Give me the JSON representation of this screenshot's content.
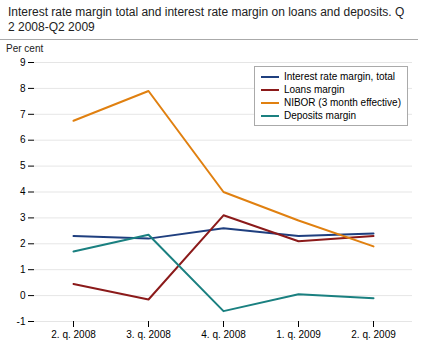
{
  "chart_data": {
    "type": "line",
    "title": "Interest rate margin total and interest rate margin on loans and deposits. Q 2 2008-Q2 2009",
    "ylabel": "Per cent",
    "categories": [
      "2. q. 2008",
      "3. q. 2008",
      "4. q. 2008",
      "1. q. 2009",
      "2. q. 2009"
    ],
    "series": [
      {
        "name": "Interest rate margin, total",
        "color": "#1f3f7f",
        "values": [
          2.3,
          2.2,
          2.6,
          2.3,
          2.4
        ]
      },
      {
        "name": "Loans margin",
        "color": "#8b1a1a",
        "values": [
          0.45,
          -0.15,
          3.1,
          2.1,
          2.3
        ]
      },
      {
        "name": "NIBOR (3 month effective)",
        "color": "#e08010",
        "values": [
          6.75,
          7.9,
          4.0,
          2.9,
          1.9
        ]
      },
      {
        "name": "Deposits margin",
        "color": "#1a8080",
        "values": [
          1.7,
          2.35,
          -0.6,
          0.05,
          -0.1
        ]
      }
    ],
    "ylim": [
      -1,
      9
    ],
    "yticks": [
      -1,
      0,
      1,
      2,
      3,
      4,
      5,
      6,
      7,
      8,
      9
    ],
    "grid": true,
    "legend": "upper right"
  }
}
